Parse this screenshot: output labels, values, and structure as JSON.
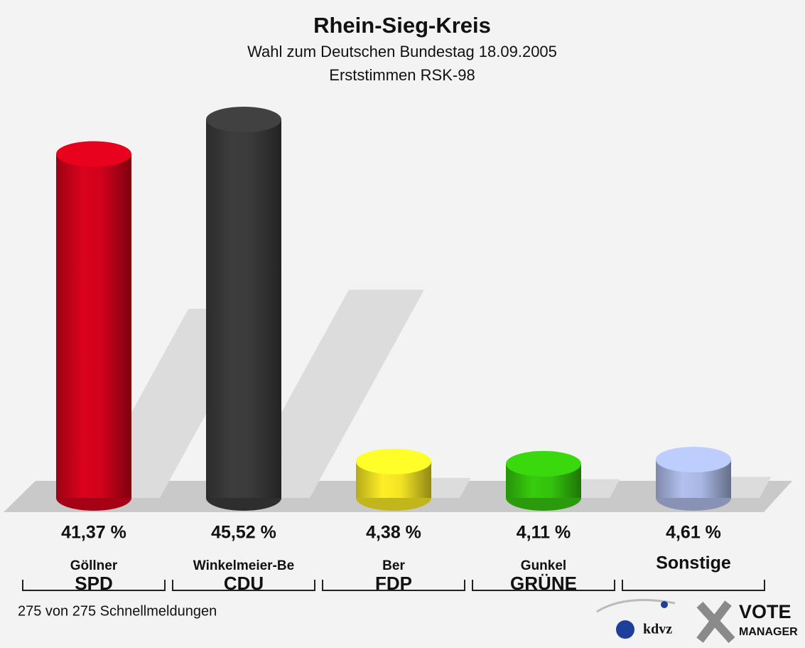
{
  "chart_data": {
    "type": "bar",
    "title": "Rhein-Sieg-Kreis",
    "subtitle": "Wahl zum Deutschen Bundestag 18.09.2005",
    "subtitle2": "Erststimmen RSK-98",
    "categories": [
      "Göllner",
      "Winkelmeier-Be",
      "Ber",
      "Gunkel",
      "Sonstige"
    ],
    "parties": [
      "SPD",
      "CDU",
      "FDP",
      "GRÜNE",
      null
    ],
    "values": [
      41.37,
      45.52,
      4.38,
      4.11,
      4.61
    ],
    "value_labels": [
      "41,37 %",
      "45,52 %",
      "4,38 %",
      "4,11 %",
      "4,61 %"
    ],
    "colors": [
      "#d0021b",
      "#3a3a3a",
      "#f2e324",
      "#34c20c",
      "#a9b7e2"
    ],
    "footer": "275 von 275 Schnellmeldungen",
    "logo_text": [
      "kdvz",
      "VOTE",
      "MANAGER"
    ]
  }
}
